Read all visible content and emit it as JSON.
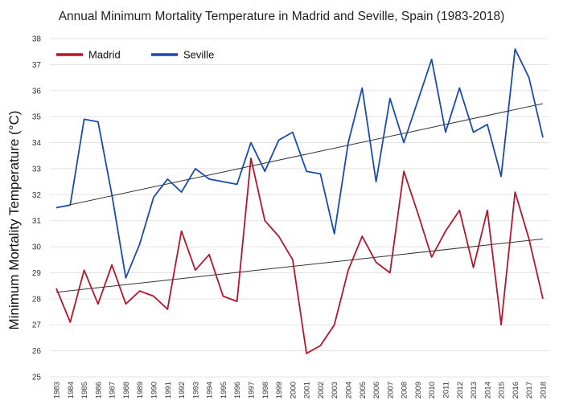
{
  "chart_data": {
    "type": "line",
    "title": "Annual Minimum Mortality Temperature in Madrid and Seville, Spain (1983-2018)",
    "xlabel": "",
    "ylabel": "Minimum Mortality Temperature (°C)",
    "ylim": [
      25,
      38
    ],
    "yticks": [
      25,
      26,
      27,
      28,
      29,
      30,
      31,
      32,
      33,
      34,
      35,
      36,
      37,
      38
    ],
    "grid": true,
    "legend_position": "top-left",
    "x": [
      "1983",
      "1984",
      "1985",
      "1986",
      "1987",
      "1988",
      "1989",
      "1990",
      "1991",
      "1992",
      "1993",
      "1994",
      "1995",
      "1996",
      "1997",
      "1998",
      "1999",
      "2000",
      "2001",
      "2002",
      "2003",
      "2004",
      "2005",
      "2006",
      "2007",
      "2008",
      "2009",
      "2010",
      "2011",
      "2012",
      "2013",
      "2014",
      "2015",
      "2016",
      "2017",
      "2018"
    ],
    "series": [
      {
        "name": "Madrid",
        "color": "#b5152b",
        "values": [
          28.4,
          27.1,
          29.1,
          27.8,
          29.3,
          27.8,
          28.3,
          28.1,
          27.6,
          30.6,
          29.1,
          29.7,
          28.1,
          27.9,
          33.4,
          31.0,
          30.4,
          29.5,
          25.9,
          26.2,
          27.0,
          29.1,
          30.4,
          29.4,
          29.0,
          32.9,
          31.3,
          29.6,
          30.6,
          31.4,
          29.2,
          31.4,
          27.0,
          32.1,
          30.3,
          28.0
        ],
        "trend": [
          28.25,
          30.3
        ]
      },
      {
        "name": "Seville",
        "color": "#1a4aad",
        "values": [
          31.5,
          31.6,
          34.9,
          34.8,
          32.0,
          28.8,
          30.1,
          31.9,
          32.6,
          32.1,
          33.0,
          32.6,
          32.5,
          32.4,
          34.0,
          32.9,
          34.1,
          34.4,
          32.9,
          32.8,
          30.5,
          34.0,
          36.1,
          32.5,
          35.7,
          34.0,
          35.6,
          37.2,
          34.4,
          36.1,
          34.4,
          34.7,
          32.7,
          37.6,
          36.5,
          34.2
        ],
        "trend": [
          31.5,
          35.5
        ]
      }
    ],
    "trendline_color": "#333333"
  }
}
